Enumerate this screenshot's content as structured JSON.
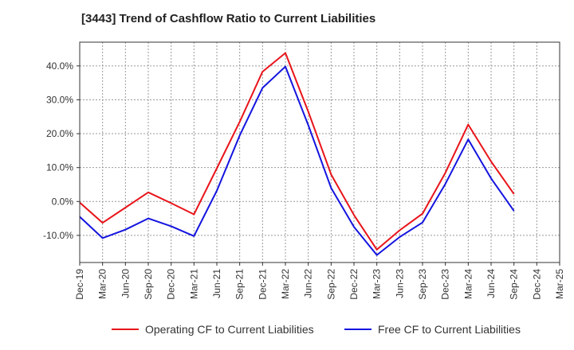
{
  "chart_data": {
    "type": "line",
    "title": "[3443]  Trend of Cashflow Ratio to Current Liabilities",
    "xlabel": "",
    "ylabel": "",
    "categories": [
      "Dec-19",
      "Mar-20",
      "Jun-20",
      "Sep-20",
      "Dec-20",
      "Mar-21",
      "Jun-21",
      "Sep-21",
      "Dec-21",
      "Mar-22",
      "Jun-22",
      "Sep-22",
      "Dec-22",
      "Mar-23",
      "Jun-23",
      "Sep-23",
      "Dec-23",
      "Mar-24",
      "Jun-24",
      "Sep-24",
      "Dec-24",
      "Mar-25"
    ],
    "ylim": [
      -18,
      47
    ],
    "yticks": [
      -10,
      0,
      10,
      20,
      30,
      40
    ],
    "ytick_labels": [
      "-10.0%",
      "0.0%",
      "10.0%",
      "20.0%",
      "30.0%",
      "40.0%"
    ],
    "grid": true,
    "legend_position": "bottom",
    "series": [
      {
        "name": "Operating CF to Current Liabilities",
        "color": "#e8141a",
        "values": [
          -0.3,
          -6.3,
          -1.8,
          2.7,
          -0.5,
          -3.8,
          9.8,
          23.5,
          38.3,
          43.8,
          26.5,
          8.0,
          -4.0,
          -14.2,
          -8.5,
          -3.6,
          8.5,
          22.7,
          11.8,
          2.2,
          null,
          null
        ]
      },
      {
        "name": "Free CF to Current Liabilities",
        "color": "#1414e0",
        "values": [
          -4.5,
          -10.8,
          -8.3,
          -5.0,
          -7.3,
          -10.2,
          3.2,
          19.5,
          33.5,
          39.8,
          22.5,
          4.0,
          -7.5,
          -15.8,
          -10.5,
          -6.2,
          5.2,
          18.3,
          6.8,
          -2.8,
          null,
          null
        ]
      }
    ]
  }
}
